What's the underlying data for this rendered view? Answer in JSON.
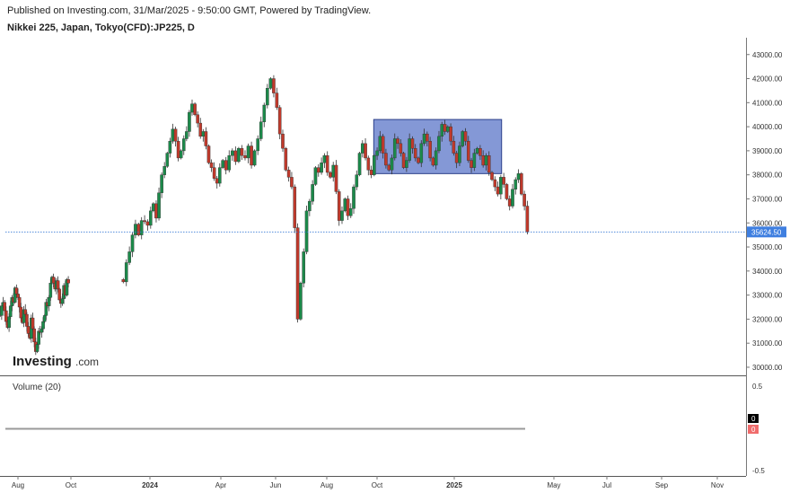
{
  "header": {
    "published": "Published on Investing.com, 31/Mar/2025 - 9:50:00 GMT, Powered by TradingView.",
    "symbol": "Nikkei 225, Japan, Tokyo(CFD):JP225, D"
  },
  "logo": {
    "word": "Investing",
    "suffix": ".com"
  },
  "last_price": {
    "value": 35624.5,
    "label": "35624.50"
  },
  "colors": {
    "up": "#1b8a4a",
    "down": "#c0392b",
    "box_fill": "#6f86cf",
    "box_stroke": "#2b3f8a",
    "price_line": "#3a7bd5"
  },
  "volume_panel": {
    "title": "Volume (20)",
    "y_ticks": [
      "0.5",
      "-0.5"
    ],
    "value_labels": [
      "0",
      "0"
    ]
  },
  "chart_data": {
    "type": "candlestick",
    "x_ticks": [
      "Aug",
      "Oct",
      "2024",
      "Apr",
      "Jun",
      "Aug",
      "Oct",
      "2025",
      "May",
      "Jul",
      "Sep",
      "Nov"
    ],
    "x_ticks_bold": [
      "2024",
      "2025"
    ],
    "y_ticks": [
      "43000.00",
      "42000.00",
      "41000.00",
      "40000.00",
      "39000.00",
      "38000.00",
      "37000.00",
      "36000.00",
      "35000.00",
      "34000.00",
      "33000.00",
      "32000.00",
      "31000.00",
      "30000.00"
    ],
    "ylim": [
      29700,
      43700
    ],
    "range_box": {
      "start": "2024-09-27",
      "end": "2025-02-28",
      "low": 38050,
      "high": 40300
    },
    "series_closes": [
      [
        32600,
        32400,
        32750,
        32300,
        32500,
        32150,
        32550,
        32700,
        32350,
        31900,
        31650,
        32100,
        32550,
        32900,
        32700,
        33300,
        33050,
        32900,
        32500,
        32050,
        31850,
        32400,
        32200,
        31700,
        31400,
        31200,
        32050,
        31600,
        31050,
        30650,
        30950,
        31500,
        31450,
        31600,
        31900,
        32150,
        32700,
        32550,
        32900,
        33500,
        33750,
        33500,
        33250,
        33600,
        33250,
        32800,
        32650,
        32850,
        33400,
        33000,
        33650,
        33500
      ],
      [
        33550,
        34350,
        34800,
        35500,
        35950,
        35500,
        36100,
        36050,
        35900,
        36500,
        36800,
        36200,
        37250,
        38000,
        38350,
        38900,
        39400,
        39900,
        39400,
        38700,
        39000,
        39500,
        39800,
        40600,
        40950,
        40500,
        40150,
        39600,
        39800,
        39200,
        38500,
        38300,
        37850,
        37650,
        38300,
        38600,
        38200,
        38800,
        39000,
        38550,
        39100,
        38800,
        38700,
        39200,
        38400,
        39000,
        39500,
        40200,
        40900,
        41600,
        42000,
        41400,
        40800,
        39700,
        39100,
        38200,
        37900,
        37500,
        35800,
        32000,
        33500,
        34800,
        36500,
        36900,
        37600,
        38300,
        38100,
        38500,
        38800,
        38100,
        37900,
        38400,
        37300,
        36100,
        36500,
        37000,
        36300,
        36600,
        37500,
        38000,
        38900,
        39300,
        38700,
        38200,
        38000,
        38800,
        39000,
        39600,
        38900,
        38400,
        38200,
        38700,
        39500,
        39300,
        38900,
        38300,
        38600,
        39500,
        39100,
        38700,
        38500,
        39300,
        39700,
        39400,
        38700,
        38400,
        39000,
        39600,
        40100,
        39800,
        40000,
        39400,
        38900,
        38500,
        39200,
        39800,
        39400,
        38600,
        38300,
        38900,
        39100,
        38800,
        38400,
        38800,
        38100,
        37800,
        37500,
        37200,
        37900,
        37600,
        37000,
        36700,
        37400,
        37800,
        38050,
        37200,
        36700,
        35624.5
      ]
    ]
  }
}
